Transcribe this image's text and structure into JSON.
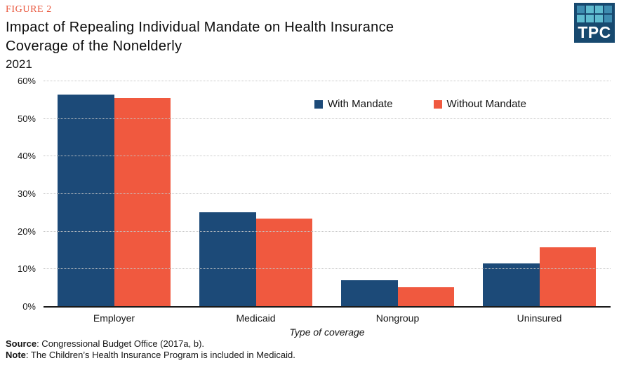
{
  "figure_label": "FIGURE 2",
  "title_lines": [
    "Impact of Repealing Individual Mandate on Health Insurance",
    "Coverage of the Nonelderly"
  ],
  "subtitle": "2021",
  "logo": {
    "text": "TPC"
  },
  "footer": {
    "source_label": "Source",
    "source_rest": ": Congressional Budget Office (2017a, b).",
    "note_label": "Note",
    "note_rest": ": The Children’s Health Insurance Program is included in Medicaid."
  },
  "colors": {
    "with_mandate": "#1C4A78",
    "without_mandate": "#F0593F",
    "figure_label_accent": "#E9573D",
    "logo_background": "#17496F"
  },
  "chart_data": {
    "type": "bar",
    "title": "Impact of Repealing Individual Mandate on Health Insurance Coverage of the Nonelderly",
    "subtitle": "2021",
    "categories": [
      "Employer",
      "Medicaid",
      "Nongroup",
      "Uninsured"
    ],
    "series": [
      {
        "name": "With Mandate",
        "color": "#1C4A78",
        "values": [
          56.3,
          25.0,
          6.9,
          11.4
        ]
      },
      {
        "name": "Without Mandate",
        "color": "#F0593F",
        "values": [
          55.4,
          23.3,
          5.0,
          15.7
        ]
      }
    ],
    "xlabel": "Type of coverage",
    "ylabel": "",
    "ylim": [
      0,
      60
    ],
    "ytick_step": 10,
    "ytick_labels": [
      "0%",
      "10%",
      "20%",
      "30%",
      "40%",
      "50%",
      "60%"
    ],
    "grid": "horizontal-dotted",
    "legend_position": "inside-top-center-right"
  }
}
